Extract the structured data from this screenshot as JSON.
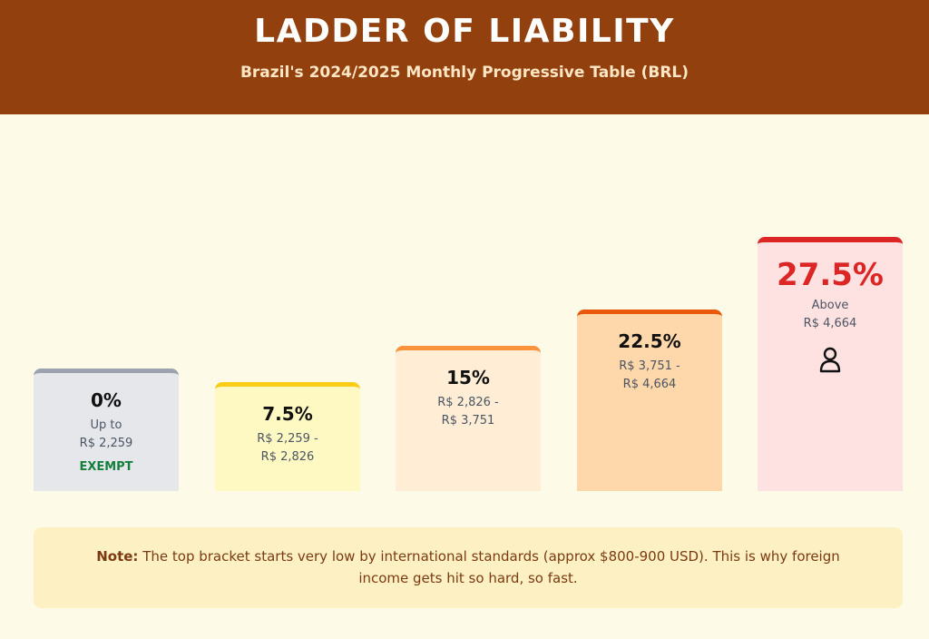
{
  "header": {
    "title": "LADDER OF LIABILITY",
    "subtitle": "Brazil's 2024/2025 Monthly Progressive Table (BRL)"
  },
  "brackets": [
    {
      "rate": "0%",
      "range_line1": "Up to",
      "range_line2": "R$ 2,259",
      "badge": "EXEMPT",
      "accent_color": "#9ca3af",
      "fill_color": "#e5e7eb"
    },
    {
      "rate": "7.5%",
      "range_line1": "R$ 2,259 -",
      "range_line2": "R$ 2,826",
      "accent_color": "#facc15",
      "fill_color": "#fef9c3"
    },
    {
      "rate": "15%",
      "range_line1": "R$ 2,826 -",
      "range_line2": "R$ 3,751",
      "accent_color": "#fb923c",
      "fill_color": "#ffedd5"
    },
    {
      "rate": "22.5%",
      "range_line1": "R$ 3,751 -",
      "range_line2": "R$ 4,664",
      "accent_color": "#ea580c",
      "fill_color": "#fed7aa"
    },
    {
      "rate": "27.5%",
      "range_line1": "Above",
      "range_line2": "R$ 4,664",
      "icon": "person-icon",
      "accent_color": "#dc2626",
      "fill_color": "#fee2e2"
    }
  ],
  "note": {
    "label": "Note:",
    "text": "The top bracket starts very low by international standards (approx $800-900 USD). This is why foreign income gets hit so hard, so fast."
  }
}
